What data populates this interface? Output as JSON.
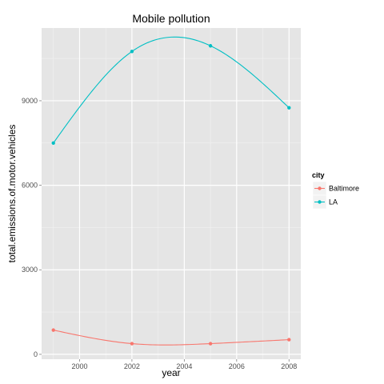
{
  "chart_data": {
    "type": "line",
    "title": "Mobile pollution",
    "xlabel": "year",
    "ylabel": "total.emissions.of.motor.vehicles",
    "x": [
      1999,
      2002,
      2005,
      2008
    ],
    "xticks": [
      2000,
      2002,
      2004,
      2006,
      2008
    ],
    "yticks": [
      0,
      3000,
      6000,
      9000
    ],
    "xlim": [
      1998.55,
      2008.45
    ],
    "ylim": [
      -173,
      11582
    ],
    "grid": true,
    "smooth": true,
    "legend": {
      "title": "city",
      "placement": "right"
    },
    "series": [
      {
        "name": "Baltimore",
        "color": "#F8766D",
        "values": [
          860,
          380,
          380,
          520
        ]
      },
      {
        "name": "LA",
        "color": "#00BFC4",
        "values": [
          7500,
          10750,
          10950,
          8750
        ]
      }
    ]
  }
}
